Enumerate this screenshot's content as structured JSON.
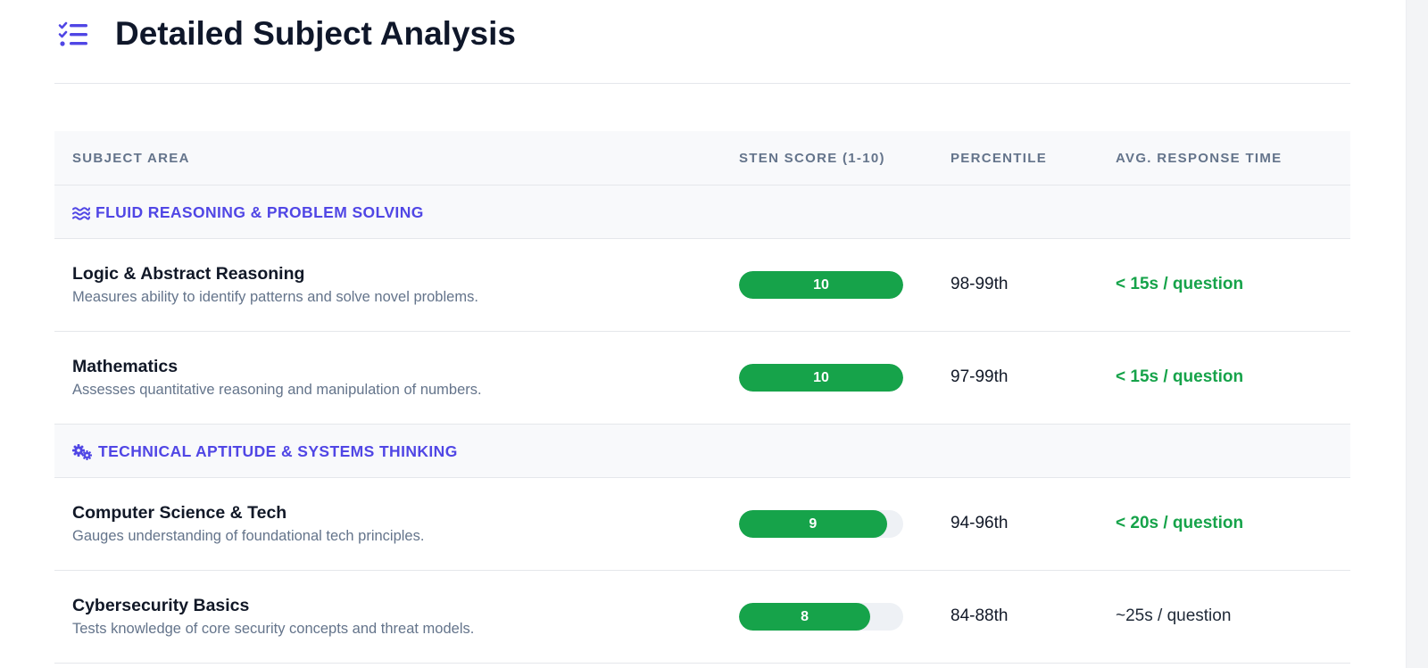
{
  "page_title": "Detailed Subject Analysis",
  "table": {
    "columns": [
      "SUBJECT AREA",
      "STEN SCORE (1-10)",
      "PERCENTILE",
      "AVG. RESPONSE TIME"
    ],
    "groups": [
      {
        "label": "FLUID REASONING & PROBLEM SOLVING",
        "icon": "waves-icon",
        "rows": [
          {
            "name": "Logic & Abstract Reasoning",
            "description": "Measures ability to identify patterns and solve novel problems.",
            "sten": "10",
            "sten_value": 10,
            "percentile": "98-99th",
            "time": "< 15s / question",
            "time_style": "fast"
          },
          {
            "name": "Mathematics",
            "description": "Assesses quantitative reasoning and manipulation of numbers.",
            "sten": "10",
            "sten_value": 10,
            "percentile": "97-99th",
            "time": "< 15s / question",
            "time_style": "fast"
          }
        ]
      },
      {
        "label": "TECHNICAL APTITUDE & SYSTEMS THINKING",
        "icon": "cogs-icon",
        "rows": [
          {
            "name": "Computer Science & Tech",
            "description": "Gauges understanding of foundational tech principles.",
            "sten": "9",
            "sten_value": 9,
            "percentile": "94-96th",
            "time": "< 20s / question",
            "time_style": "fast"
          },
          {
            "name": "Cybersecurity Basics",
            "description": "Tests knowledge of core security concepts and threat models.",
            "sten": "8",
            "sten_value": 8,
            "percentile": "84-88th",
            "time": "~25s / question",
            "time_style": "normal"
          }
        ]
      }
    ]
  },
  "colors": {
    "accent": "#5046e5",
    "score_bar": "#16a34a",
    "fast_time": "#16a34a",
    "muted_text": "#64748b"
  }
}
